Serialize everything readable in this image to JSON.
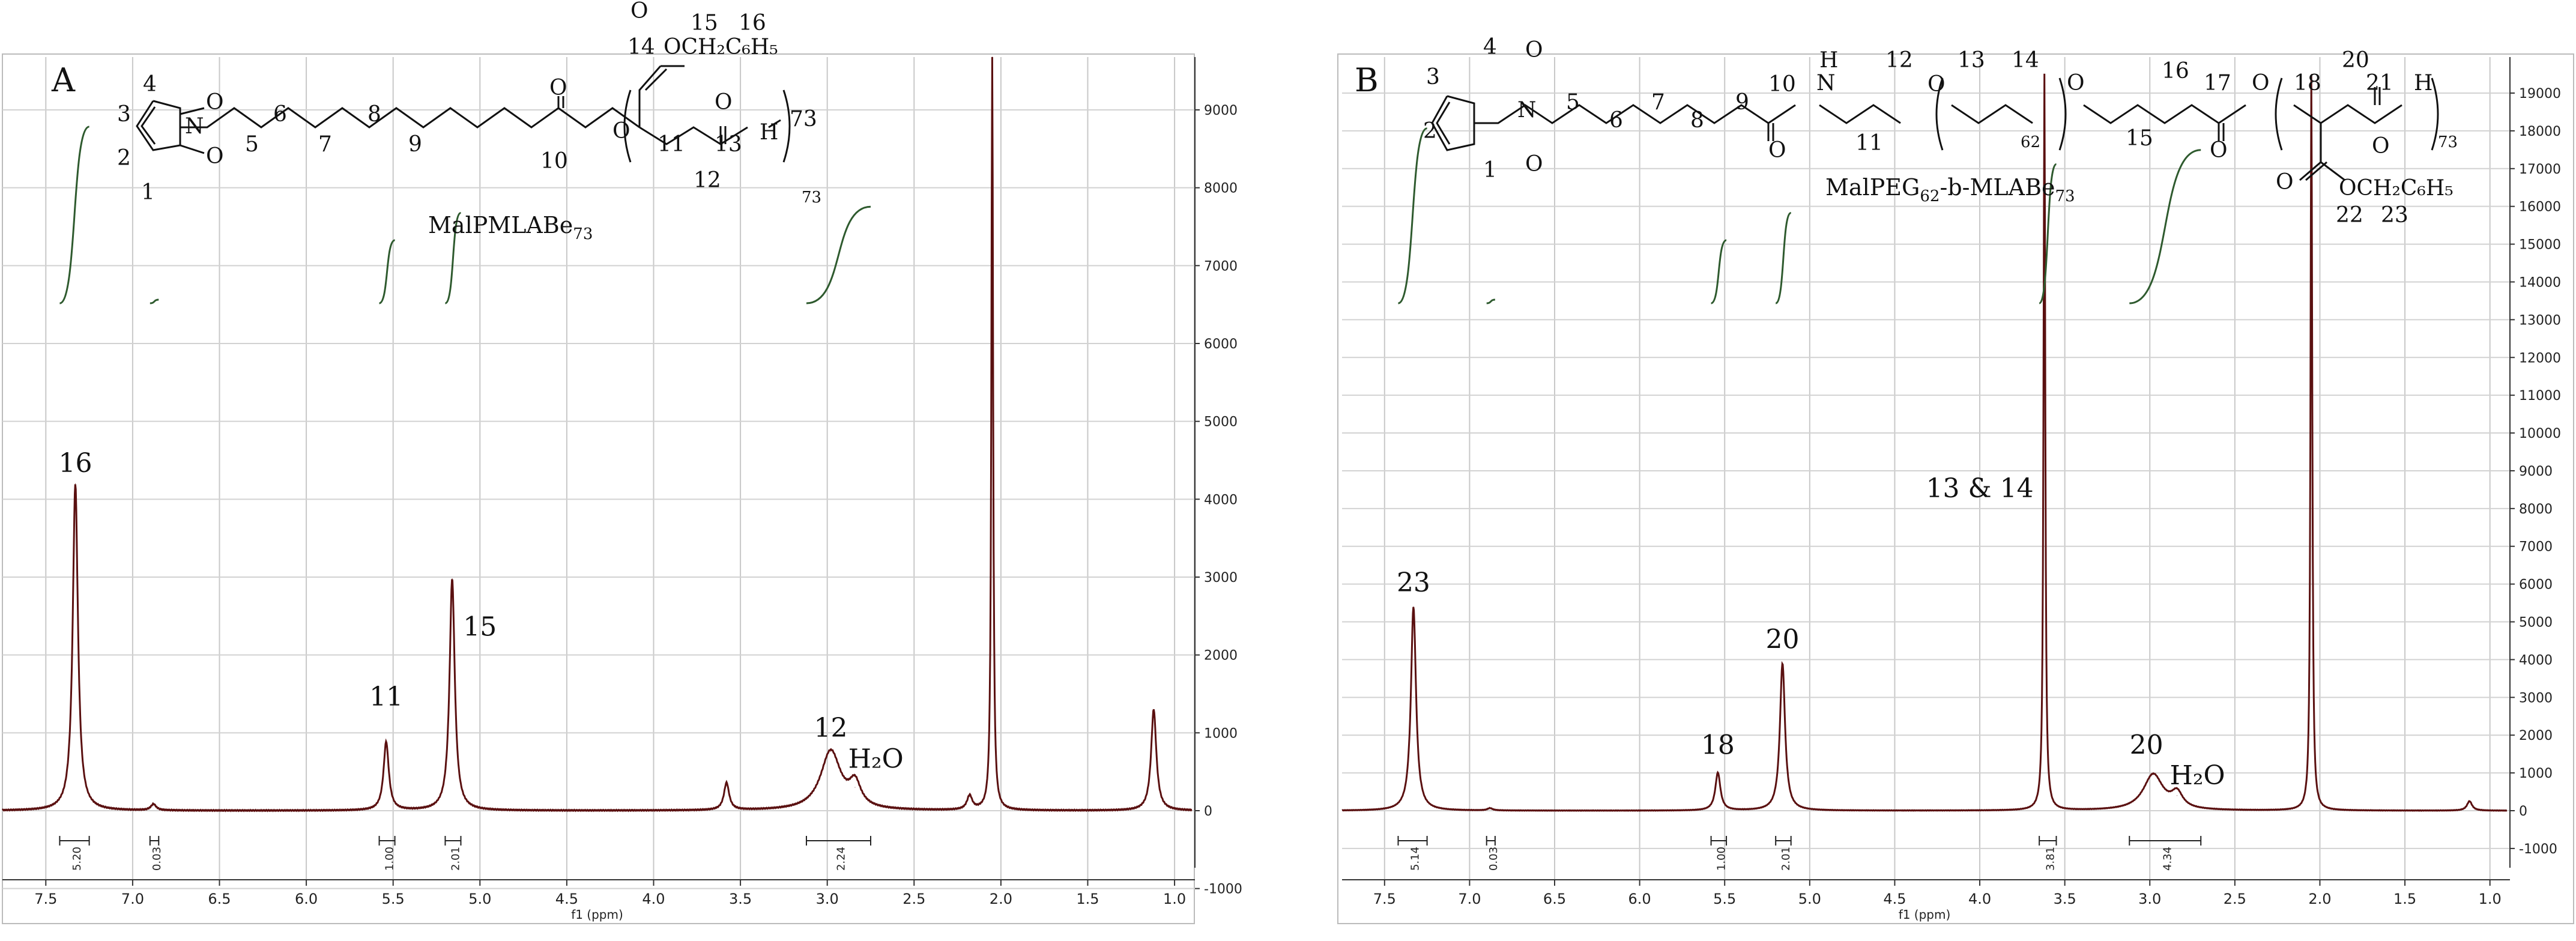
{
  "figure": {
    "panels": [
      {
        "letter": "A",
        "structure_label": "MalPMLABe",
        "structure_label_sub": "73",
        "xlabel": "f1 (ppm)",
        "y_ticks": [
          -1000,
          0,
          1000,
          2000,
          3000,
          4000,
          5000,
          6000,
          7000,
          8000,
          9000
        ],
        "x_ticks": [
          "7.5",
          "7.0",
          "6.5",
          "6.0",
          "5.5",
          "5.0",
          "4.5",
          "4.0",
          "3.5",
          "3.0",
          "2.5",
          "2.0",
          "1.5",
          "1.0"
        ],
        "peak_labels": [
          {
            "text": "16",
            "x": 7.33,
            "y": 4350
          },
          {
            "text": "11",
            "x": 5.54,
            "y": 1350
          },
          {
            "text": "15",
            "x": 5.0,
            "y": 2250
          },
          {
            "text": "12",
            "x": 2.98,
            "y": 950
          },
          {
            "text": "H₂O",
            "x": 2.72,
            "y": 550
          }
        ],
        "integrals": [
          {
            "text": "5.20",
            "x1": 7.42,
            "x2": 7.25
          },
          {
            "text": "0.03",
            "x1": 6.9,
            "x2": 6.85
          },
          {
            "text": "1.00",
            "x1": 5.58,
            "x2": 5.49
          },
          {
            "text": "2.01",
            "x1": 5.2,
            "x2": 5.11
          },
          {
            "text": "2.24",
            "x1": 3.12,
            "x2": 2.75
          }
        ]
      },
      {
        "letter": "B",
        "structure_label": "MalPEG",
        "structure_label_sub": "62",
        "structure_label_mid": "-b-MLABe",
        "structure_label_sub2": "73",
        "xlabel": "f1 (ppm)",
        "y_ticks": [
          -1000,
          0,
          1000,
          2000,
          3000,
          4000,
          5000,
          6000,
          7000,
          8000,
          9000,
          10000,
          11000,
          12000,
          13000,
          14000,
          15000,
          16000,
          17000,
          18000,
          19000
        ],
        "x_ticks": [
          "7.5",
          "7.0",
          "6.5",
          "6.0",
          "5.5",
          "5.0",
          "4.5",
          "4.0",
          "3.5",
          "3.0",
          "2.5",
          "2.0",
          "1.5",
          "1.0"
        ],
        "peak_labels": [
          {
            "text": "23",
            "x": 7.33,
            "y": 5800
          },
          {
            "text": "18",
            "x": 5.54,
            "y": 1500
          },
          {
            "text": "20",
            "x": 5.16,
            "y": 4300
          },
          {
            "text": "13 & 14",
            "x": 4.0,
            "y": 8300
          },
          {
            "text": "20",
            "x": 3.02,
            "y": 1500
          },
          {
            "text": "H₂O",
            "x": 2.72,
            "y": 700
          }
        ],
        "integrals": [
          {
            "text": "5.14",
            "x1": 7.42,
            "x2": 7.25
          },
          {
            "text": "0.03",
            "x1": 6.9,
            "x2": 6.85
          },
          {
            "text": "1.00",
            "x1": 5.58,
            "x2": 5.49
          },
          {
            "text": "2.01",
            "x1": 5.2,
            "x2": 5.11
          },
          {
            "text": "3.81",
            "x1": 3.65,
            "x2": 3.55
          },
          {
            "text": "4.34",
            "x1": 3.12,
            "x2": 2.7
          }
        ]
      }
    ]
  },
  "chart_data": [
    {
      "type": "line",
      "title": "",
      "xlabel": "f1 (ppm)",
      "ylabel": "",
      "xlim": [
        7.75,
        0.9
      ],
      "ylim": [
        -1500,
        9700
      ],
      "x_reversed": true,
      "peaks": [
        {
          "ppm": 7.33,
          "intensity": 4200,
          "assignment": "16"
        },
        {
          "ppm": 6.88,
          "intensity": 80
        },
        {
          "ppm": 5.54,
          "intensity": 880,
          "assignment": "11"
        },
        {
          "ppm": 5.16,
          "intensity": 2980,
          "assignment": "15"
        },
        {
          "ppm": 3.58,
          "intensity": 350
        },
        {
          "ppm": 2.98,
          "intensity": 760,
          "assignment": "12"
        },
        {
          "ppm": 2.84,
          "intensity": 300,
          "assignment": "H₂O"
        },
        {
          "ppm": 2.18,
          "intensity": 180
        },
        {
          "ppm": 2.05,
          "intensity": 9700
        },
        {
          "ppm": 1.12,
          "intensity": 1300
        }
      ]
    },
    {
      "type": "line",
      "title": "",
      "xlabel": "f1 (ppm)",
      "ylabel": "",
      "xlim": [
        7.75,
        0.9
      ],
      "ylim": [
        -1500,
        19700
      ],
      "x_reversed": true,
      "peaks": [
        {
          "ppm": 7.33,
          "intensity": 5400,
          "assignment": "23"
        },
        {
          "ppm": 6.88,
          "intensity": 60
        },
        {
          "ppm": 5.54,
          "intensity": 1000,
          "assignment": "18"
        },
        {
          "ppm": 5.16,
          "intensity": 3900,
          "assignment": "20"
        },
        {
          "ppm": 3.62,
          "intensity": 19500,
          "assignment": "13 & 14"
        },
        {
          "ppm": 2.98,
          "intensity": 950,
          "assignment": "20"
        },
        {
          "ppm": 2.84,
          "intensity": 400,
          "assignment": "H₂O"
        },
        {
          "ppm": 2.05,
          "intensity": 19500
        },
        {
          "ppm": 1.12,
          "intensity": 250
        }
      ]
    }
  ],
  "structures": {
    "A": {
      "atoms": [
        "4",
        "3",
        "2",
        "1",
        "O",
        "N",
        "O",
        "5",
        "6",
        "7",
        "8",
        "9",
        "O",
        "10",
        "O",
        "14",
        "15",
        "16",
        "O",
        "OCH₂C₆H₅",
        "11",
        "12",
        "13",
        "O",
        "H",
        "73"
      ]
    },
    "B": {
      "atoms": [
        "4",
        "3",
        "2",
        "1",
        "O",
        "N",
        "O",
        "5",
        "6",
        "7",
        "8",
        "9",
        "10",
        "O",
        "H",
        "N",
        "11",
        "12",
        "13",
        "O",
        "14",
        "62",
        "O",
        "15",
        "16",
        "17",
        "O",
        "O",
        "18",
        "20",
        "21",
        "O",
        "H",
        "73",
        "O",
        "OCH₂C₆H₅",
        "22",
        "23"
      ]
    }
  }
}
